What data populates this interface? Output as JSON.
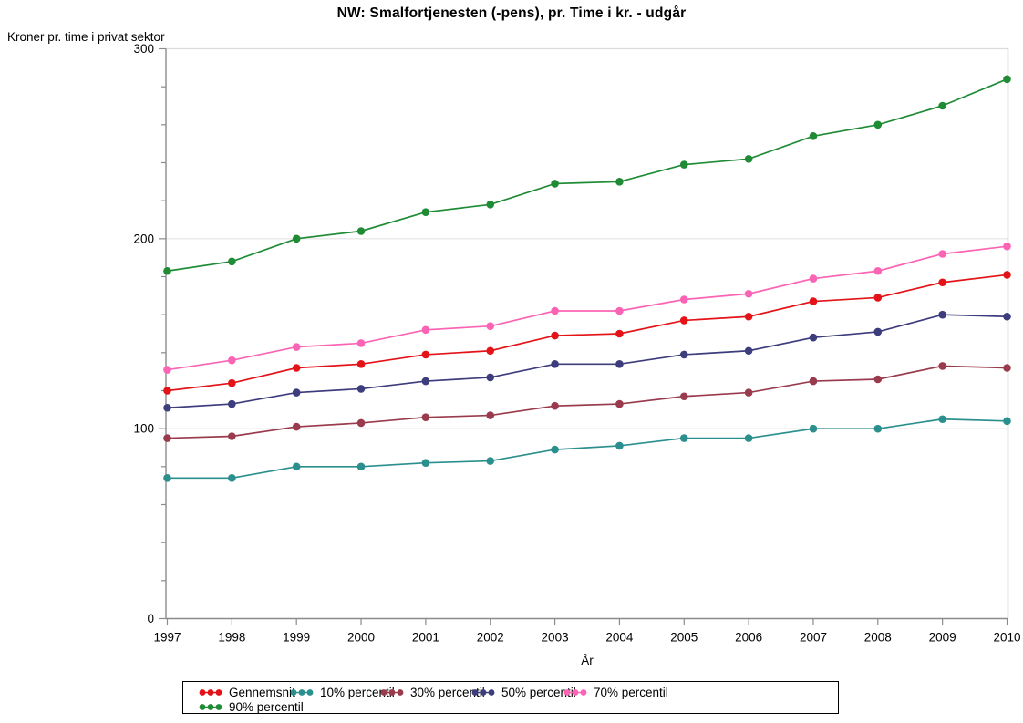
{
  "title": "NW: Smalfortjenesten (-pens), pr. Time i kr. - udgår",
  "chart_data": {
    "type": "line",
    "title": "NW: Smalfortjenesten (-pens), pr. Time i kr. - udgår",
    "ylabel": "Kroner pr. time i privat sektor",
    "xlabel": "År",
    "x": [
      "1997",
      "1998",
      "1999",
      "2000",
      "2001",
      "2002",
      "2003",
      "2004",
      "2005",
      "2006",
      "2007",
      "2008",
      "2009",
      "2010"
    ],
    "ylim": [
      0,
      300
    ],
    "yticks": [
      0,
      100,
      200,
      300
    ],
    "y_minor_step": 20,
    "grid_values": [
      100,
      200
    ],
    "grid_on": true,
    "legend_position": "bottom",
    "series": [
      {
        "name": "Gennemsnit",
        "color": "#e31318",
        "values": [
          120,
          124,
          132,
          134,
          139,
          141,
          149,
          150,
          157,
          159,
          167,
          169,
          177,
          181
        ]
      },
      {
        "name": "10% percentil",
        "color": "#2b8f8e",
        "values": [
          74,
          74,
          80,
          80,
          82,
          83,
          89,
          91,
          95,
          95,
          100,
          100,
          105,
          104
        ]
      },
      {
        "name": "30% percentil",
        "color": "#993b4d",
        "values": [
          95,
          96,
          101,
          103,
          106,
          107,
          112,
          113,
          117,
          119,
          125,
          126,
          133,
          132
        ]
      },
      {
        "name": "50% percentil",
        "color": "#3d3c7c",
        "values": [
          111,
          113,
          119,
          121,
          125,
          127,
          134,
          134,
          139,
          141,
          148,
          151,
          160,
          159
        ]
      },
      {
        "name": "70% percentil",
        "color": "#fb64b4",
        "values": [
          131,
          136,
          143,
          145,
          152,
          154,
          162,
          162,
          168,
          171,
          179,
          183,
          192,
          196
        ]
      },
      {
        "name": "90% percentil",
        "color": "#1f8b35",
        "values": [
          183,
          188,
          200,
          204,
          214,
          218,
          229,
          230,
          239,
          242,
          254,
          260,
          270,
          284
        ]
      }
    ]
  },
  "colors": {
    "axis": "#8b8b8b",
    "grid": "#e8e8e8",
    "frame_top": "#dcdcdc",
    "frame_right": "#a3a3a3",
    "text": "#000000",
    "legend_border": "#000000"
  }
}
